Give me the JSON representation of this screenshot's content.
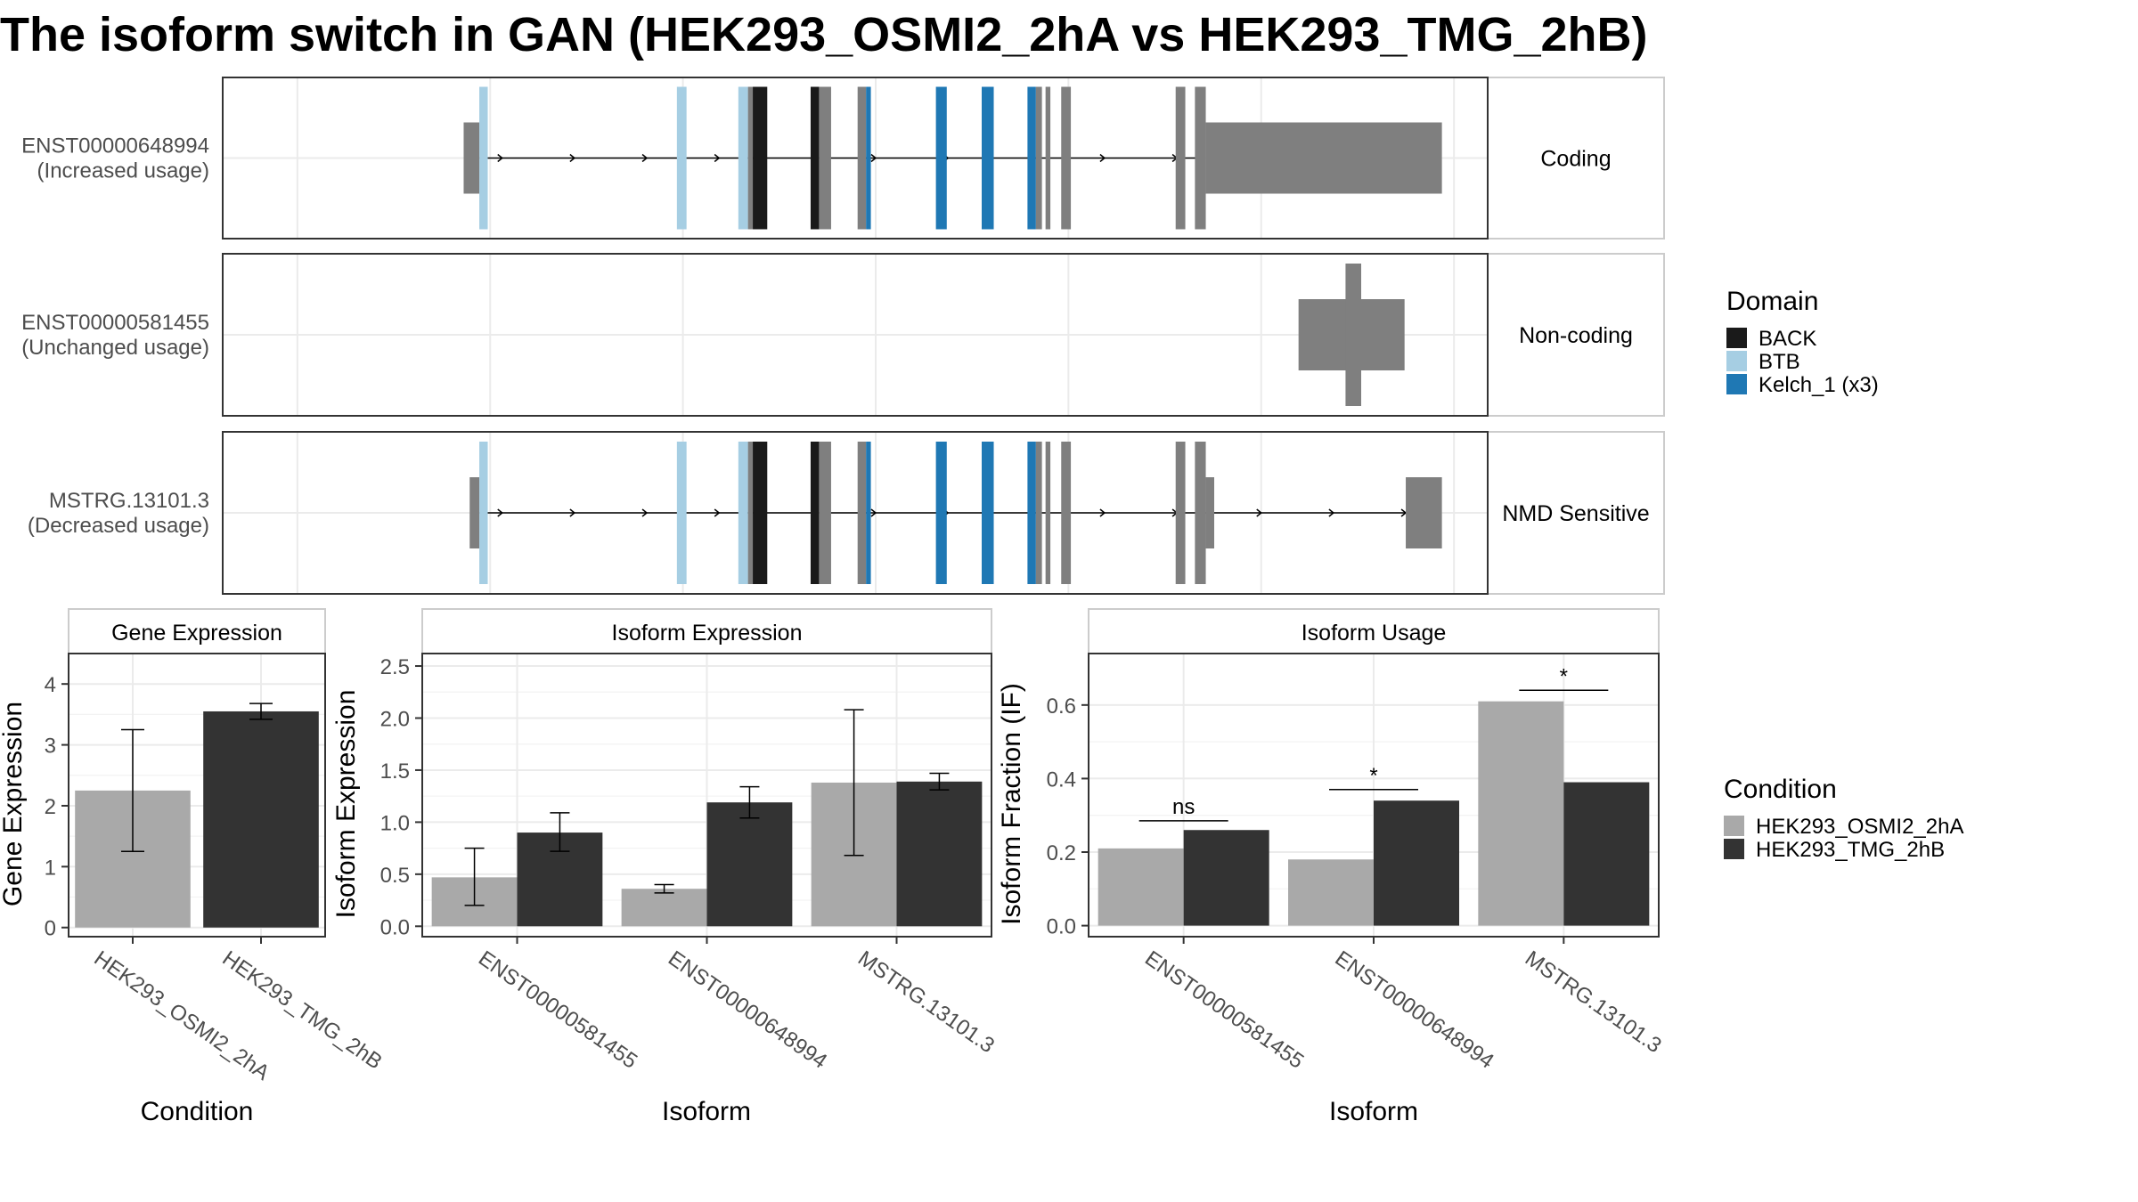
{
  "title": "The isoform switch in GAN (HEK293_OSMI2_2hA vs HEK293_TMG_2hB)",
  "colors": {
    "BACK": "#1a1a1a",
    "BTB": "#a6cee3",
    "Kelch_1 (x3)": "#1f78b4",
    "exon": "#7f7f7f",
    "HEK293_OSMI2_2hA": "#a9a9a9",
    "HEK293_TMG_2hB": "#333333"
  },
  "chart_data": [
    {
      "type": "gene-structure",
      "panel": "isoform-structures",
      "tracks": [
        {
          "name": "ENST00000648994",
          "usage_label": "(Increased usage)",
          "strip_label": "Coding",
          "utr_start": [
            200,
            213
          ],
          "utr_end": [
            816,
            1012
          ],
          "exons": [
            {
              "s": 200,
              "e": 213
            },
            {
              "s": 213,
              "e": 220,
              "domain": "BTB"
            },
            {
              "s": 377,
              "e": 385,
              "domain": "BTB"
            },
            {
              "s": 428,
              "e": 436,
              "domain": "BTB"
            },
            {
              "s": 436,
              "e": 440
            },
            {
              "s": 440,
              "e": 452,
              "domain": "BACK"
            },
            {
              "s": 488,
              "e": 495,
              "domain": "BACK"
            },
            {
              "s": 495,
              "e": 505
            },
            {
              "s": 527,
              "e": 534
            },
            {
              "s": 534,
              "e": 538,
              "domain": "Kelch_1 (x3)"
            },
            {
              "s": 592,
              "e": 601,
              "domain": "Kelch_1 (x3)"
            },
            {
              "s": 630,
              "e": 640,
              "domain": "Kelch_1 (x3)"
            },
            {
              "s": 668,
              "e": 675,
              "domain": "Kelch_1 (x3)"
            },
            {
              "s": 675,
              "e": 680
            },
            {
              "s": 683,
              "e": 687
            },
            {
              "s": 696,
              "e": 704
            },
            {
              "s": 791,
              "e": 799
            },
            {
              "s": 807,
              "e": 816
            }
          ]
        },
        {
          "name": "ENST00000581455",
          "usage_label": "(Unchanged usage)",
          "strip_label": "Non-coding",
          "exons": [
            {
              "s": 893,
              "e": 981,
              "nc": true
            }
          ],
          "center_block": [
            932,
            945
          ]
        },
        {
          "name": "MSTRG.13101.3",
          "usage_label": "(Decreased usage)",
          "strip_label": "NMD Sensitive",
          "utr_start": [
            205,
            213
          ],
          "utr_end": [
            816,
            823
          ],
          "utr_tail": [
            982,
            1012
          ],
          "exons": [
            {
              "s": 205,
              "e": 213
            },
            {
              "s": 213,
              "e": 220,
              "domain": "BTB"
            },
            {
              "s": 377,
              "e": 385,
              "domain": "BTB"
            },
            {
              "s": 428,
              "e": 436,
              "domain": "BTB"
            },
            {
              "s": 436,
              "e": 440
            },
            {
              "s": 440,
              "e": 452,
              "domain": "BACK"
            },
            {
              "s": 488,
              "e": 495,
              "domain": "BACK"
            },
            {
              "s": 495,
              "e": 505
            },
            {
              "s": 527,
              "e": 534
            },
            {
              "s": 534,
              "e": 538,
              "domain": "Kelch_1 (x3)"
            },
            {
              "s": 592,
              "e": 601,
              "domain": "Kelch_1 (x3)"
            },
            {
              "s": 630,
              "e": 640,
              "domain": "Kelch_1 (x3)"
            },
            {
              "s": 668,
              "e": 675,
              "domain": "Kelch_1 (x3)"
            },
            {
              "s": 675,
              "e": 680
            },
            {
              "s": 683,
              "e": 687
            },
            {
              "s": 696,
              "e": 704
            },
            {
              "s": 791,
              "e": 799
            },
            {
              "s": 807,
              "e": 816
            }
          ]
        }
      ],
      "legend": {
        "title": "Domain",
        "items": [
          "BACK",
          "BTB",
          "Kelch_1 (x3)"
        ]
      }
    },
    {
      "type": "bar",
      "panel": "gene-expression",
      "title": "Gene Expression",
      "xlabel": "Condition",
      "ylabel": "Gene Expression",
      "categories": [
        "HEK293_OSMI2_2hA",
        "HEK293_TMG_2hB"
      ],
      "values": [
        2.25,
        3.55
      ],
      "errors": [
        [
          1.25,
          3.25
        ],
        [
          3.42,
          3.68
        ]
      ],
      "ylim": [
        -0.15,
        4.5
      ],
      "yticks": [
        0,
        1,
        2,
        3,
        4
      ],
      "ytick_labels": [
        "0",
        "1",
        "2",
        "3",
        "4"
      ]
    },
    {
      "type": "bar",
      "panel": "isoform-expression",
      "title": "Isoform Expression",
      "xlabel": "Isoform",
      "ylabel": "Isoform Expression",
      "categories": [
        "ENST00000581455",
        "ENST00000648994",
        "MSTRG.13101.3"
      ],
      "series": [
        {
          "name": "HEK293_OSMI2_2hA",
          "values": [
            0.47,
            0.36,
            1.38
          ],
          "errors": [
            [
              0.2,
              0.75
            ],
            [
              0.32,
              0.4
            ],
            [
              0.68,
              2.08
            ]
          ]
        },
        {
          "name": "HEK293_TMG_2hB",
          "values": [
            0.9,
            1.19,
            1.39
          ],
          "errors": [
            [
              0.72,
              1.09
            ],
            [
              1.04,
              1.34
            ],
            [
              1.31,
              1.47
            ]
          ]
        }
      ],
      "ylim": [
        -0.1,
        2.62
      ],
      "yticks": [
        0,
        0.5,
        1.0,
        1.5,
        2.0,
        2.5
      ],
      "ytick_labels": [
        "0.0",
        "0.5",
        "1.0",
        "1.5",
        "2.0",
        "2.5"
      ]
    },
    {
      "type": "bar",
      "panel": "isoform-usage",
      "title": "Isoform Usage",
      "xlabel": "Isoform",
      "ylabel": "Isoform Fraction (IF)",
      "categories": [
        "ENST00000581455",
        "ENST00000648994",
        "MSTRG.13101.3"
      ],
      "series": [
        {
          "name": "HEK293_OSMI2_2hA",
          "values": [
            0.21,
            0.18,
            0.61
          ]
        },
        {
          "name": "HEK293_TMG_2hB",
          "values": [
            0.26,
            0.34,
            0.39
          ]
        }
      ],
      "significance": [
        {
          "label": "ns",
          "y": 0.285
        },
        {
          "label": "*",
          "y": 0.37
        },
        {
          "label": "*",
          "y": 0.64
        }
      ],
      "ylim": [
        -0.03,
        0.74
      ],
      "yticks": [
        0,
        0.2,
        0.4,
        0.6
      ],
      "ytick_labels": [
        "0.0",
        "0.2",
        "0.4",
        "0.6"
      ]
    }
  ],
  "condition_legend": {
    "title": "Condition",
    "items": [
      "HEK293_OSMI2_2hA",
      "HEK293_TMG_2hB"
    ]
  }
}
